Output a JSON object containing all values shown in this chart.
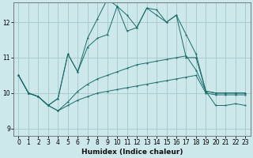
{
  "xlabel": "Humidex (Indice chaleur)",
  "background_color": "#cce8ea",
  "grid_color": "#aaccce",
  "line_color": "#1a6b6b",
  "xlim": [
    -0.5,
    23.5
  ],
  "ylim": [
    8.8,
    12.55
  ],
  "yticks": [
    9,
    10,
    11,
    12
  ],
  "xticks": [
    0,
    1,
    2,
    3,
    4,
    5,
    6,
    7,
    8,
    9,
    10,
    11,
    12,
    13,
    14,
    15,
    16,
    17,
    18,
    19,
    20,
    21,
    22,
    23
  ],
  "line1_y": [
    10.5,
    10.0,
    9.9,
    9.65,
    9.5,
    9.65,
    9.8,
    9.9,
    10.0,
    10.05,
    10.1,
    10.15,
    10.2,
    10.25,
    10.3,
    10.35,
    10.4,
    10.45,
    10.5,
    10.0,
    9.95,
    9.95,
    9.95,
    9.95
  ],
  "line2_y": [
    10.5,
    10.0,
    9.9,
    9.65,
    9.5,
    9.75,
    10.05,
    10.25,
    10.4,
    10.5,
    10.6,
    10.7,
    10.8,
    10.85,
    10.9,
    10.95,
    11.0,
    11.05,
    10.65,
    10.05,
    10.0,
    10.0,
    10.0,
    10.0
  ],
  "line3_y": [
    10.5,
    10.0,
    9.9,
    9.65,
    9.85,
    11.1,
    10.6,
    11.3,
    11.55,
    11.65,
    12.45,
    11.75,
    11.85,
    12.4,
    12.2,
    12.0,
    12.2,
    11.0,
    11.0,
    10.05,
    9.65,
    9.65,
    9.7,
    9.65
  ],
  "line4_y": [
    10.5,
    10.0,
    9.9,
    9.65,
    9.85,
    11.1,
    10.6,
    11.55,
    12.1,
    12.65,
    12.45,
    12.2,
    11.85,
    12.4,
    12.35,
    12.0,
    12.2,
    11.65,
    11.1,
    10.05,
    10.0,
    10.0,
    10.0,
    10.0
  ]
}
